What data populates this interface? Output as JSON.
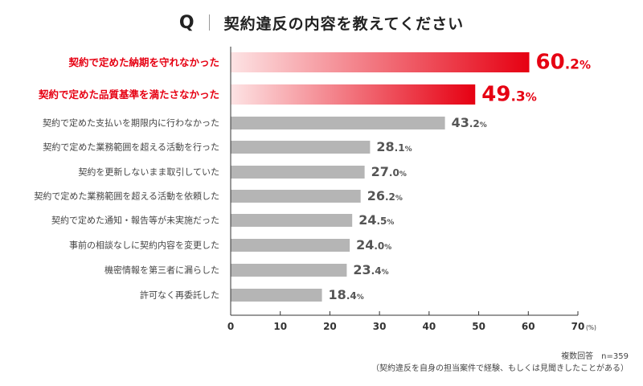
{
  "question": {
    "mark": "Q",
    "text": "契約違反の内容を教えてください"
  },
  "chart_data": {
    "type": "bar",
    "orientation": "horizontal",
    "categories": [
      "契約で定めた納期を守れなかった",
      "契約で定めた品質基準を満たさなかった",
      "契約で定めた支払いを期限内に行わなかった",
      "契約で定めた業務範囲を超える活動を行った",
      "契約を更新しないまま取引していた",
      "契約で定めた業務範囲を超える活動を依頼した",
      "契約で定めた通知・報告等が未実施だった",
      "事前の相談なしに契約内容を変更した",
      "機密情報を第三者に漏らした",
      "許可なく再委託した"
    ],
    "values": [
      60.2,
      49.3,
      43.2,
      28.1,
      27.0,
      26.2,
      24.5,
      24.0,
      23.4,
      18.4
    ],
    "value_labels": [
      "60.2",
      "49.3",
      "43.2",
      "28.1",
      "27.0",
      "26.2",
      "24.5",
      "24.0",
      "23.4",
      "18.4"
    ],
    "value_suffix": "%",
    "highlighted_count": 2,
    "x_ticks": [
      0,
      10,
      20,
      30,
      40,
      50,
      60,
      70
    ],
    "x_unit": "(%)",
    "xlim": [
      0,
      70
    ],
    "grid": false,
    "colors": {
      "highlight": "#e60012",
      "highlight_light": "#fde3e4",
      "bar": "#b5b5b5",
      "label": "#444444",
      "value": "#555555",
      "axis": "#333333"
    }
  },
  "footnote": {
    "line1": "複数回答　n=359",
    "line2": "（契約違反を自身の担当案件で経験、もしくは見聞きしたことがある）"
  }
}
